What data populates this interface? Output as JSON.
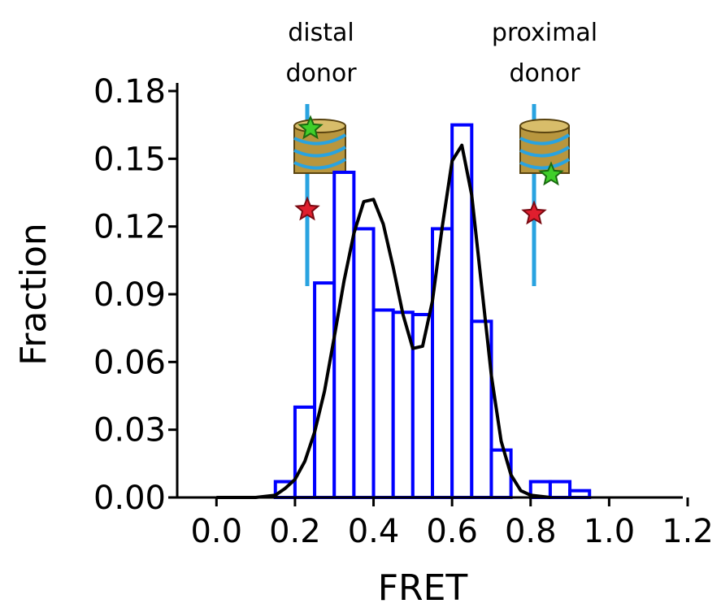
{
  "chart_data": {
    "type": "histogram",
    "xlabel": "FRET",
    "ylabel": "Fraction",
    "annotations": [
      [
        "distal",
        "donor"
      ],
      [
        "proximal",
        "donor"
      ]
    ],
    "bins": [
      0.15,
      0.2,
      0.25,
      0.3,
      0.35,
      0.4,
      0.45,
      0.5,
      0.55,
      0.6,
      0.65,
      0.7,
      0.75,
      0.8,
      0.85,
      0.9,
      0.95
    ],
    "values": [
      0.007,
      0.04,
      0.095,
      0.144,
      0.119,
      0.083,
      0.082,
      0.081,
      0.119,
      0.165,
      0.078,
      0.021,
      0,
      0.007,
      0.007,
      0.003
    ],
    "color": "#0000ff",
    "fit": {
      "color": "#000000",
      "x": [
        0.0,
        0.05,
        0.1,
        0.15,
        0.175,
        0.2,
        0.225,
        0.25,
        0.275,
        0.3,
        0.325,
        0.35,
        0.375,
        0.4,
        0.425,
        0.45,
        0.475,
        0.5,
        0.525,
        0.55,
        0.575,
        0.6,
        0.625,
        0.65,
        0.675,
        0.7,
        0.725,
        0.75,
        0.775,
        0.8,
        0.85
      ],
      "values": [
        0,
        0,
        0,
        0.001,
        0.004,
        0.008,
        0.016,
        0.029,
        0.047,
        0.071,
        0.096,
        0.117,
        0.131,
        0.132,
        0.121,
        0.102,
        0.081,
        0.066,
        0.067,
        0.087,
        0.12,
        0.149,
        0.156,
        0.134,
        0.094,
        0.054,
        0.025,
        0.01,
        0.003,
        0.001,
        0
      ]
    },
    "xlim": [
      -0.1,
      1.2
    ],
    "ylim": [
      0,
      0.18
    ],
    "xticks": [
      {
        "value": 0,
        "label": "0.0"
      },
      {
        "value": 0.2,
        "label": "0.2"
      },
      {
        "value": 0.4,
        "label": "0.4"
      },
      {
        "value": 0.6,
        "label": "0.6"
      },
      {
        "value": 0.8,
        "label": "0.8"
      },
      {
        "value": 1,
        "label": "1.0"
      },
      {
        "value": 1.2,
        "label": "1.2"
      }
    ],
    "yticks": [
      {
        "value": 0,
        "label": "0.00"
      },
      {
        "value": 0.03,
        "label": "0.03"
      },
      {
        "value": 0.06,
        "label": "0.06"
      },
      {
        "value": 0.09,
        "label": "0.09"
      },
      {
        "value": 0.12,
        "label": "0.12"
      },
      {
        "value": 0.15,
        "label": "0.15"
      },
      {
        "value": 0.18,
        "label": "0.18"
      }
    ]
  }
}
